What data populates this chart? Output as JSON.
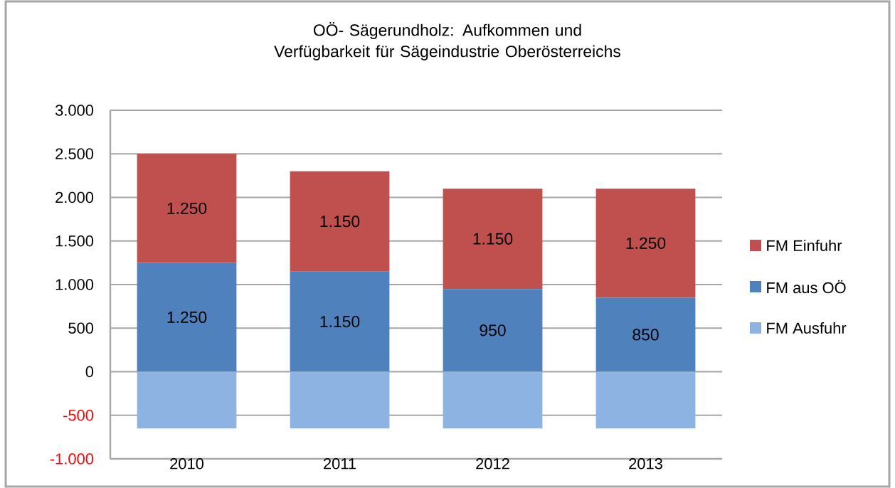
{
  "chart_data": {
    "type": "bar",
    "title": "OÖ- Sägerundholz: Aufkommen und Verfügbarkeit für Sägeindustrie Oberösterreichs",
    "categories": [
      "2010",
      "2011",
      "2012",
      "2013"
    ],
    "stacked": true,
    "series": [
      {
        "name": "FM aus OÖ",
        "color": "#4f81bd",
        "values": [
          1250,
          1150,
          950,
          850
        ],
        "value_labels": [
          "1.250",
          "1.150",
          "950",
          "850"
        ]
      },
      {
        "name": "FM Einfuhr",
        "color": "#c0504d",
        "values": [
          1250,
          1150,
          1150,
          1250
        ],
        "value_labels": [
          "1.250",
          "1.150",
          "1.150",
          "1.250"
        ]
      },
      {
        "name": "FM Ausfuhr",
        "color": "#8db3e2",
        "values": [
          -650,
          -650,
          -650,
          -650
        ]
      }
    ],
    "ylim": [
      -1000,
      3000
    ],
    "yticks": [
      {
        "value": -1000,
        "label": "-1.000"
      },
      {
        "value": -500,
        "label": "-500"
      },
      0,
      500,
      {
        "value": 1000,
        "label": "1.000"
      },
      {
        "value": 1500,
        "label": "1.500"
      },
      {
        "value": 2000,
        "label": "2.000"
      },
      {
        "value": 2500,
        "label": "2.500"
      },
      {
        "value": 3000,
        "label": "3.000"
      }
    ],
    "grid": "y",
    "legend": "right"
  }
}
